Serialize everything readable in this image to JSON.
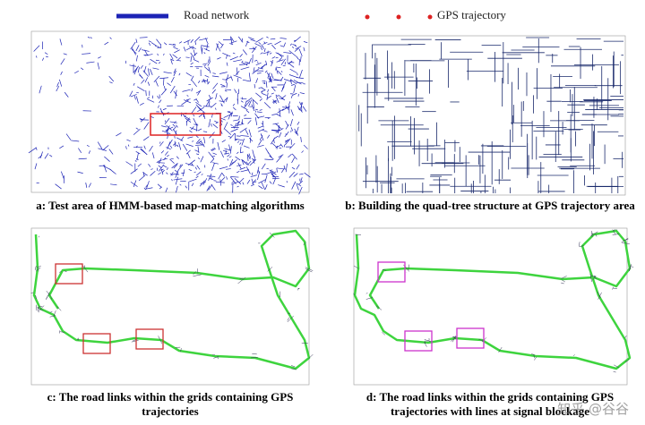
{
  "legend": {
    "road_network": "Road network",
    "gps_trajectory": "GPS trajectory"
  },
  "panels": [
    {
      "caption": "a:  Test area of HMM-based map-matching algorithms"
    },
    {
      "caption": "b: Building the quad-tree structure at GPS trajectory area"
    },
    {
      "caption": "c: The road links within the grids containing GPS trajectories"
    },
    {
      "caption": "d: The road links within the grids containing GPS trajectories with lines at signal blockage"
    }
  ],
  "watermark": "知乎 @谷谷"
}
